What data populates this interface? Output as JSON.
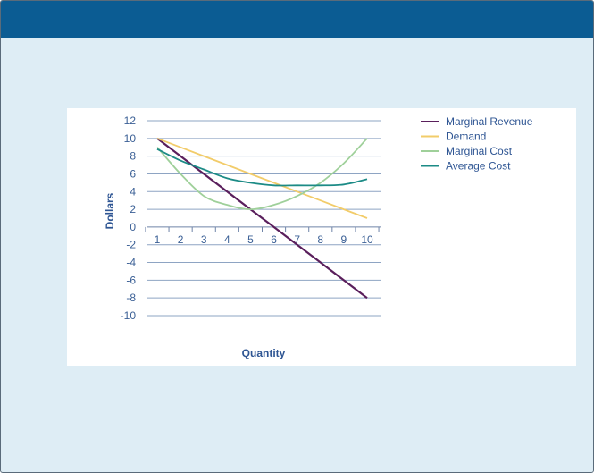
{
  "chart_data": {
    "type": "line",
    "x": [
      1,
      2,
      3,
      4,
      5,
      6,
      7,
      8,
      9,
      10
    ],
    "xlabel": "Quantity",
    "ylabel": "Dollars",
    "xticks": [
      "1",
      "2",
      "3",
      "4",
      "5",
      "6",
      "7",
      "8",
      "9",
      "10"
    ],
    "yticks": [
      "12",
      "10",
      "8",
      "6",
      "4",
      "2",
      "0",
      "-2",
      "-4",
      "-6",
      "-8",
      "-10"
    ],
    "ylim": [
      -10,
      12
    ],
    "grid": "horizontal",
    "legend_position": "right",
    "series": [
      {
        "name": "Marginal Revenue",
        "color": "#5a1f5c",
        "values": [
          10,
          8,
          6,
          4,
          2,
          0,
          -2,
          -4,
          -6,
          -8
        ]
      },
      {
        "name": "Demand",
        "color": "#f2cc6a",
        "values": [
          10,
          9,
          8,
          7,
          6,
          5,
          4,
          3,
          2,
          1
        ]
      },
      {
        "name": "Marginal Cost",
        "color": "#9fd09a",
        "values": [
          9,
          6,
          3.5,
          2.5,
          2,
          2.5,
          3.5,
          5,
          7.2,
          10
        ]
      },
      {
        "name": "Average Cost",
        "color": "#1c8b86",
        "values": [
          8.8,
          7.5,
          6.5,
          5.5,
          5,
          4.7,
          4.7,
          4.7,
          4.8,
          5.4
        ]
      }
    ]
  }
}
